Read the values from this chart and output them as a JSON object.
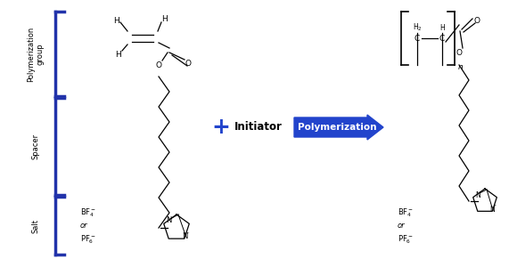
{
  "bracket_color": "#2233aa",
  "bracket_lw": 2.5,
  "arrow_color": "#2244cc",
  "arrow_text": "Polymerization",
  "arrow_text_color": "#ffffff",
  "initiator_text": "Initiator",
  "plus_color": "#2244cc",
  "label_poly": "Polymerization\ngroup",
  "label_spacer": "Spacer",
  "label_salt": "Salt",
  "font_label": 6.5,
  "font_chem": 6.5,
  "font_small": 5.5
}
